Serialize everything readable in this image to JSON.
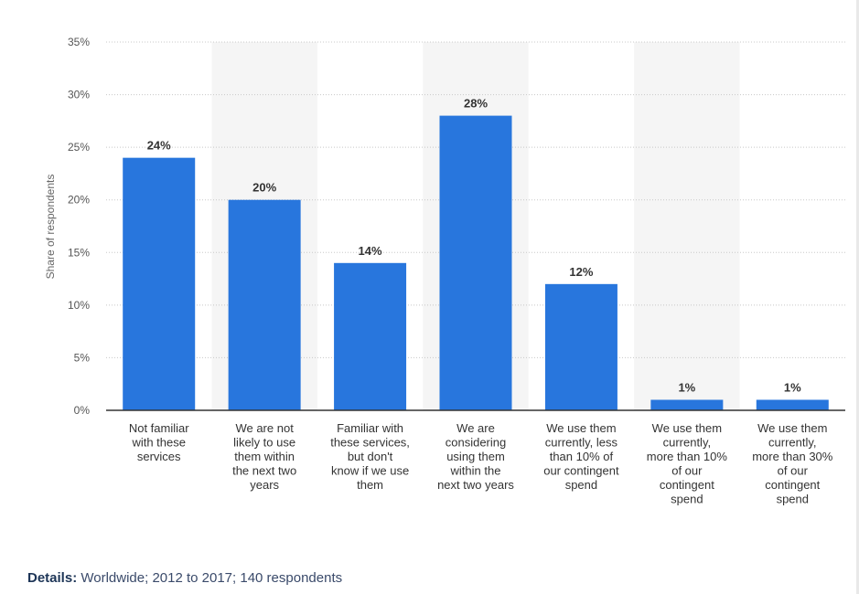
{
  "chart_data": {
    "type": "bar",
    "title": "",
    "ylabel": "Share of respondents",
    "xlabel": "",
    "ylim": [
      0,
      35
    ],
    "yticks": [
      "0%",
      "5%",
      "10%",
      "15%",
      "20%",
      "25%",
      "30%",
      "35%"
    ],
    "ytick_values": [
      0,
      5,
      10,
      15,
      20,
      25,
      30,
      35
    ],
    "grid": true,
    "categories": [
      "Not familiar with these services",
      "We are not likely to use them within the next two years",
      "Familiar with these services, but don't know if we use them",
      "We are considering using them within the next two years",
      "We use them currently, less than 10% of our contingent spend",
      "We use them currently, more than 10% of our contingent spend",
      "We use them currently, more than 30% of our contingent spend"
    ],
    "category_lines": [
      [
        "Not familiar",
        "with these",
        "services"
      ],
      [
        "We are not",
        "likely to use",
        "them within",
        "the next two",
        "years"
      ],
      [
        "Familiar with",
        "these services,",
        "but don't",
        "know if we use",
        "them"
      ],
      [
        "We are",
        "considering",
        "using them",
        "within the",
        "next two years"
      ],
      [
        "We use them",
        "currently, less",
        "than 10% of",
        "our contingent",
        "spend"
      ],
      [
        "We use them",
        "currently,",
        "more than 10%",
        "of our",
        "contingent",
        "spend"
      ],
      [
        "We use them",
        "currently,",
        "more than 30%",
        "of our",
        "contingent",
        "spend"
      ]
    ],
    "values": [
      24,
      20,
      14,
      28,
      12,
      1,
      1
    ],
    "data_labels": [
      "24%",
      "20%",
      "14%",
      "28%",
      "12%",
      "1%",
      "1%"
    ],
    "bar_color": "#2876dd",
    "band_color": "#f5f5f5",
    "grid_color": "#c8c8c8",
    "axis_color": "#333333"
  },
  "details": {
    "label": "Details:",
    "text": "Worldwide; 2012 to 2017; 140 respondents"
  }
}
